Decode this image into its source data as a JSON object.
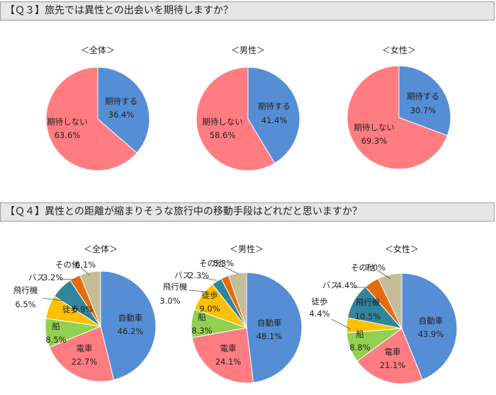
{
  "questions": {
    "q3": "【Ｑ３】旅先では異性との出会いを期待しますか？",
    "q4": "【Ｑ４】異性との距離が縮まりそうな旅行中の移動手段はどれだと思いますか？"
  },
  "chart_data": [
    {
      "type": "pie",
      "question": "q3",
      "title": "＜全体＞",
      "categories": [
        "期待する",
        "期待しない"
      ],
      "values": [
        36.4,
        63.6
      ],
      "colors": [
        "#558ed5",
        "#ff7c80"
      ],
      "labels": [
        "36.4%",
        "63.6%"
      ]
    },
    {
      "type": "pie",
      "question": "q3",
      "title": "＜男性＞",
      "categories": [
        "期待する",
        "期待しない"
      ],
      "values": [
        41.4,
        58.6
      ],
      "colors": [
        "#558ed5",
        "#ff7c80"
      ],
      "labels": [
        "41.4%",
        "58.6%"
      ]
    },
    {
      "type": "pie",
      "question": "q3",
      "title": "＜女性＞",
      "categories": [
        "期待する",
        "期待しない"
      ],
      "values": [
        30.7,
        69.3
      ],
      "colors": [
        "#558ed5",
        "#ff7c80"
      ],
      "labels": [
        "30.7%",
        "69.3%"
      ]
    },
    {
      "type": "pie",
      "question": "q4",
      "title": "＜全体＞",
      "categories": [
        "自動車",
        "電車",
        "船",
        "徒歩",
        "飛行機",
        "バス",
        "その他"
      ],
      "values": [
        46.2,
        22.7,
        8.5,
        6.9,
        6.5,
        3.2,
        6.1
      ],
      "colors": [
        "#558ed5",
        "#ff7c80",
        "#92d050",
        "#ffc000",
        "#31859c",
        "#e46c0a",
        "#c4bd97"
      ],
      "labels": [
        "46.2%",
        "22.7%",
        "8.5%",
        "6.9%",
        "6.5%",
        "3.2%",
        "6.1%"
      ]
    },
    {
      "type": "pie",
      "question": "q4",
      "title": "＜男性＞",
      "categories": [
        "自動車",
        "電車",
        "船",
        "徒歩",
        "飛行機",
        "バス",
        "その他"
      ],
      "values": [
        48.1,
        24.1,
        8.3,
        9.0,
        3.0,
        2.3,
        5.3
      ],
      "colors": [
        "#558ed5",
        "#ff7c80",
        "#92d050",
        "#ffc000",
        "#31859c",
        "#e46c0a",
        "#c4bd97"
      ],
      "labels": [
        "48.1%",
        "24.1%",
        "8.3%",
        "9.0%",
        "3.0%",
        "2.3%",
        "5.3%"
      ]
    },
    {
      "type": "pie",
      "question": "q4",
      "title": "＜女性＞",
      "categories": [
        "自動車",
        "電車",
        "船",
        "徒歩",
        "飛行機",
        "バス",
        "その他"
      ],
      "values": [
        43.9,
        21.1,
        8.8,
        4.4,
        10.5,
        4.4,
        7.0
      ],
      "colors": [
        "#558ed5",
        "#ff7c80",
        "#92d050",
        "#ffc000",
        "#31859c",
        "#e46c0a",
        "#c4bd97"
      ],
      "labels": [
        "43.9%",
        "21.1%",
        "8.8%",
        "4.4%",
        "10.5%",
        "4.4%",
        "7.0%"
      ]
    }
  ]
}
